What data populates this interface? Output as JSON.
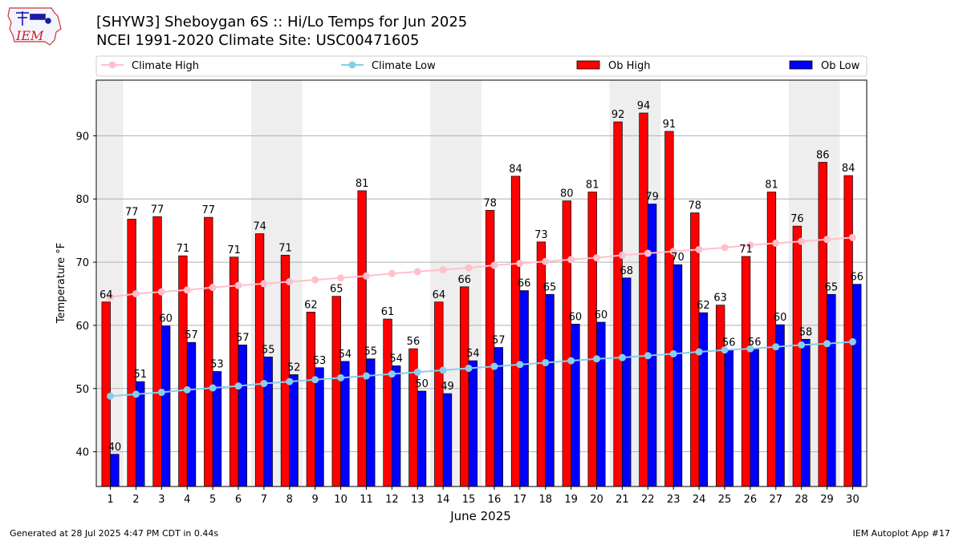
{
  "header": {
    "title": "[SHYW3] Sheboygan 6S :: Hi/Lo Temps for Jun 2025",
    "subtitle": "NCEI 1991-2020 Climate Site: USC00471605",
    "logo_text": "IEM"
  },
  "footer": {
    "left": "Generated at 28 Jul 2025 4:47 PM CDT in 0.44s",
    "right": "IEM Autoplot App #17"
  },
  "colors": {
    "ob_high": "#ff0000",
    "ob_low": "#0000ff",
    "climate_high": "#ffc0cb",
    "climate_low": "#87ceeb",
    "weekend_shade": "#eeeeee",
    "grid": "#b0b0b0"
  },
  "chart_data": {
    "type": "bar",
    "title": "[SHYW3] Sheboygan 6S :: Hi/Lo Temps for Jun 2025",
    "subtitle": "NCEI 1991-2020 Climate Site: USC00471605",
    "xlabel": "June 2025",
    "ylabel": "Temperature °F",
    "ylim": [
      34.5,
      98.8
    ],
    "yticks": [
      40,
      50,
      60,
      70,
      80,
      90
    ],
    "grid": "y",
    "legend_position": "top",
    "categories": [
      "1",
      "2",
      "3",
      "4",
      "5",
      "6",
      "7",
      "8",
      "9",
      "10",
      "11",
      "12",
      "13",
      "14",
      "15",
      "16",
      "17",
      "18",
      "19",
      "20",
      "21",
      "22",
      "23",
      "24",
      "25",
      "26",
      "27",
      "28",
      "29",
      "30"
    ],
    "shaded_days": [
      1,
      7,
      8,
      14,
      15,
      21,
      22,
      28,
      29
    ],
    "series": [
      {
        "name": "Ob High",
        "type": "bar",
        "color": "#ff0000",
        "values": [
          63.7,
          76.8,
          77.2,
          71.0,
          77.1,
          70.8,
          74.5,
          71.1,
          62.1,
          64.6,
          81.3,
          61.0,
          56.3,
          63.7,
          66.1,
          78.2,
          83.6,
          73.2,
          79.7,
          81.1,
          92.2,
          93.6,
          90.7,
          77.8,
          63.2,
          70.9,
          81.1,
          75.7,
          85.8,
          83.7
        ],
        "labels": [
          "64",
          "77",
          "77",
          "71",
          "77",
          "71",
          "74",
          "71",
          "62",
          "65",
          "81",
          "61",
          "56",
          "64",
          "66",
          "78",
          "84",
          "73",
          "80",
          "81",
          "92",
          "94",
          "91",
          "78",
          "63",
          "71",
          "81",
          "76",
          "86",
          "84"
        ]
      },
      {
        "name": "Ob Low",
        "type": "bar",
        "color": "#0000ff",
        "values": [
          39.6,
          51.1,
          59.9,
          57.3,
          52.7,
          56.9,
          55.0,
          52.2,
          53.3,
          54.3,
          54.7,
          53.6,
          49.6,
          49.2,
          54.4,
          56.5,
          65.5,
          64.9,
          60.2,
          60.5,
          67.5,
          79.2,
          69.6,
          62.0,
          56.1,
          56.2,
          60.1,
          57.8,
          64.9,
          66.5
        ],
        "labels": [
          "40",
          "51",
          "60",
          "57",
          "53",
          "57",
          "55",
          "52",
          "53",
          "54",
          "55",
          "54",
          "50",
          "49",
          "54",
          "57",
          "66",
          "65",
          "60",
          "60",
          "68",
          "79",
          "70",
          "62",
          "56",
          "56",
          "60",
          "58",
          "65",
          "66"
        ]
      },
      {
        "name": "Climate High",
        "type": "line",
        "color": "#ffc0cb",
        "values": [
          64.5,
          65.0,
          65.3,
          65.6,
          66.0,
          66.3,
          66.6,
          66.9,
          67.2,
          67.5,
          67.8,
          68.2,
          68.5,
          68.8,
          69.1,
          69.5,
          69.8,
          70.1,
          70.4,
          70.7,
          71.1,
          71.4,
          71.7,
          72.0,
          72.3,
          72.7,
          73.0,
          73.3,
          73.6,
          73.9
        ]
      },
      {
        "name": "Climate Low",
        "type": "line",
        "color": "#87ceeb",
        "values": [
          48.8,
          49.1,
          49.4,
          49.8,
          50.1,
          50.4,
          50.8,
          51.1,
          51.4,
          51.7,
          52.0,
          52.3,
          52.6,
          52.9,
          53.2,
          53.5,
          53.8,
          54.1,
          54.4,
          54.7,
          54.9,
          55.2,
          55.5,
          55.8,
          56.1,
          56.3,
          56.6,
          56.9,
          57.1,
          57.4
        ]
      }
    ]
  }
}
